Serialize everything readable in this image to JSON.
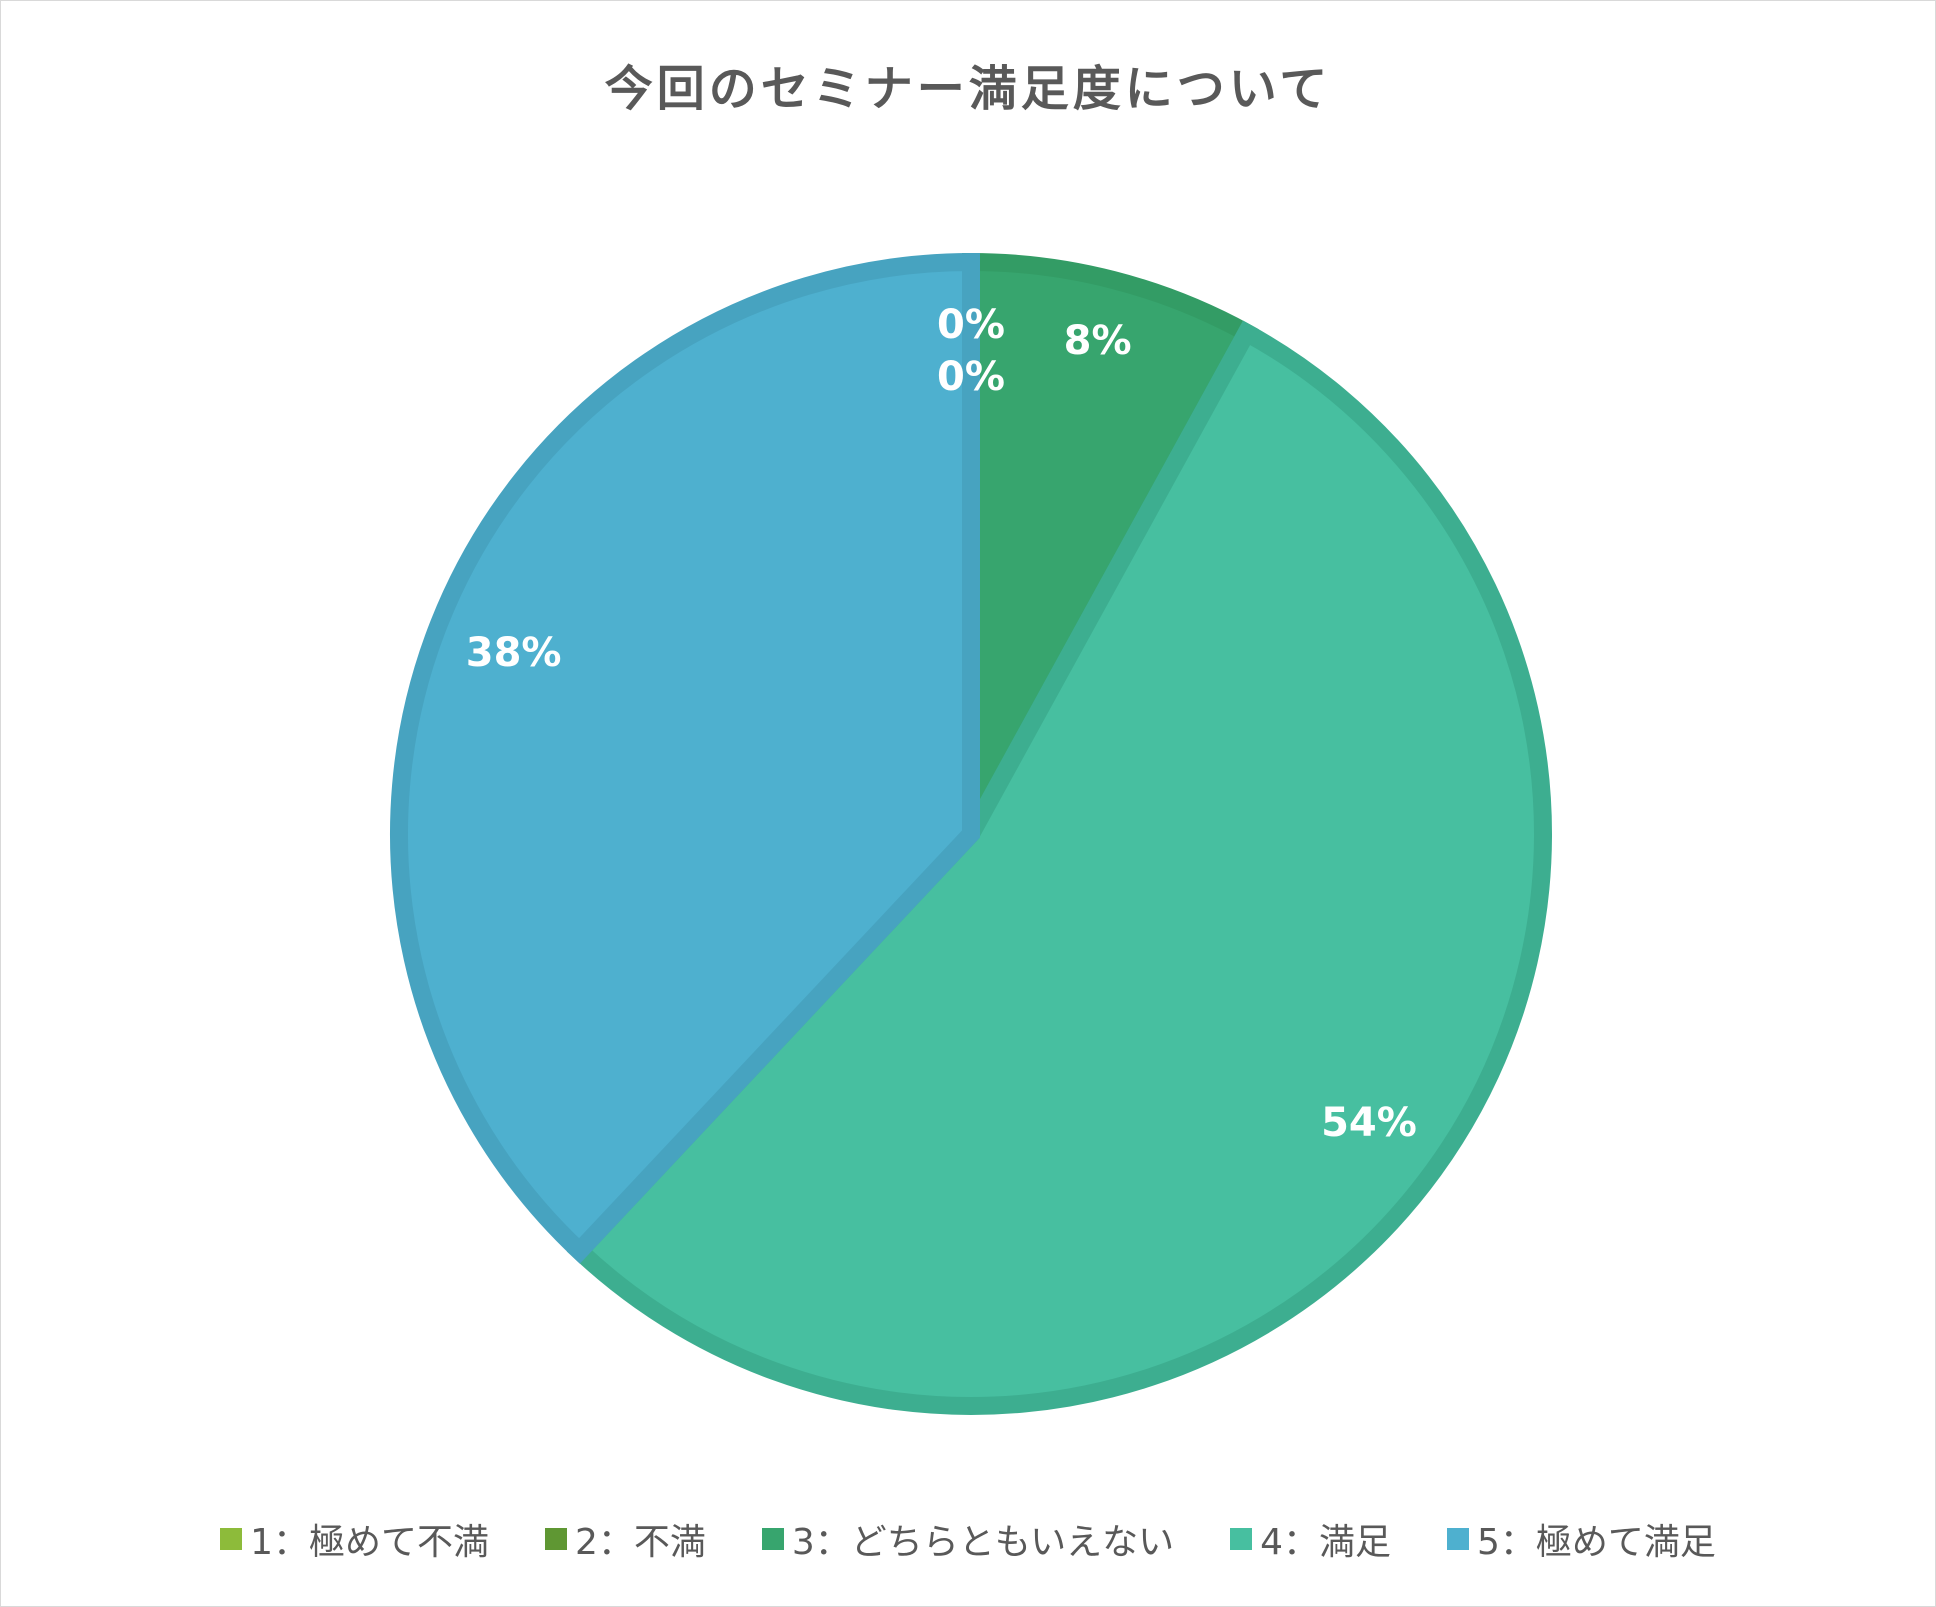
{
  "chart_data": {
    "type": "pie",
    "title": "今回のセミナー満足度について",
    "categories": [
      "1：極めて不満",
      "2：不満",
      "3：どちらともいえない",
      "4：満足",
      "5：極めて満足"
    ],
    "values": [
      0,
      0,
      8,
      54,
      38
    ],
    "data_labels": [
      "0%",
      "0%",
      "8%",
      "54%",
      "38%"
    ],
    "colors": [
      "#8DBB3A",
      "#5F9733",
      "#37A56E",
      "#47BFA0",
      "#4EB0CF"
    ],
    "border_colors": [
      "#80AA34",
      "#56892E",
      "#339C65",
      "#3DAE90",
      "#47A3C0"
    ],
    "legend_position": "bottom",
    "start_angle_deg": 0,
    "direction": "clockwise"
  }
}
